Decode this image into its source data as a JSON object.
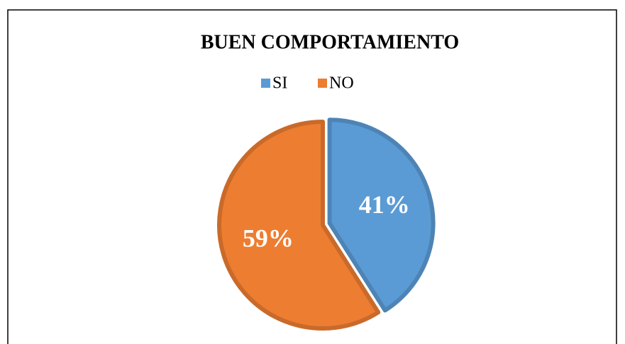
{
  "chart_data": {
    "type": "pie",
    "title": "BUEN COMPORTAMIENTO",
    "categories": [
      "SI",
      "NO"
    ],
    "values": [
      41,
      59
    ],
    "value_labels": [
      "41%",
      "59%"
    ],
    "colors": [
      "#5b9bd5",
      "#ed7d31"
    ],
    "legend": "top"
  }
}
